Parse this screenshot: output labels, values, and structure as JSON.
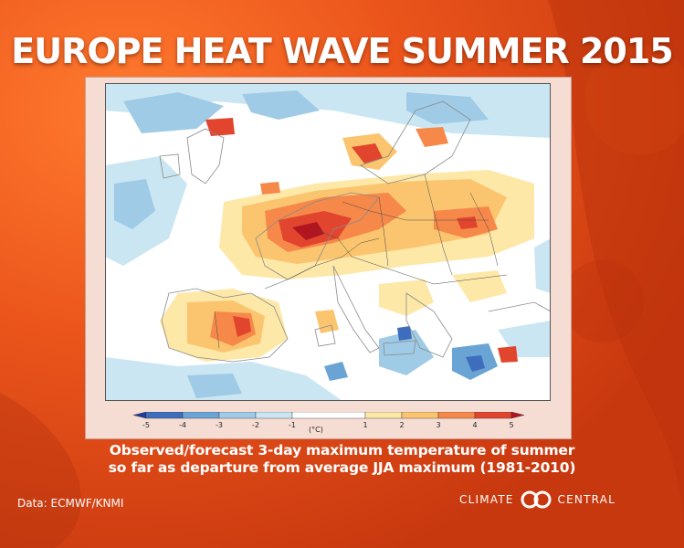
{
  "title": "EUROPE HEAT WAVE SUMMER 2015",
  "caption": {
    "line1": "Observed/forecast 3-day maximum temperature of summer",
    "line2": "so far as departure from average JJA maximum (1981-2010)"
  },
  "source": "Data: ECMWF/KNMI",
  "logo": {
    "left": "CLIMATE",
    "right": "CENTRAL"
  },
  "legend": {
    "unit": "(°C)",
    "ticks": [
      "-5",
      "-4",
      "-3",
      "-2",
      "-1",
      "1",
      "2",
      "3",
      "4",
      "5"
    ],
    "bins": [
      {
        "from": -6,
        "to": -5,
        "color": "#1f3c9c"
      },
      {
        "from": -5,
        "to": -4,
        "color": "#3f6dbd"
      },
      {
        "from": -4,
        "to": -3,
        "color": "#6aa4d4"
      },
      {
        "from": -3,
        "to": -2,
        "color": "#9fcbe6"
      },
      {
        "from": -2,
        "to": -1,
        "color": "#cbe6f3"
      },
      {
        "from": -1,
        "to": 1,
        "color": "#ffffff"
      },
      {
        "from": 1,
        "to": 2,
        "color": "#fde8a8"
      },
      {
        "from": 2,
        "to": 3,
        "color": "#fbc56f"
      },
      {
        "from": 3,
        "to": 4,
        "color": "#f6894a"
      },
      {
        "from": 4,
        "to": 5,
        "color": "#e2452d"
      },
      {
        "from": 5,
        "to": 6,
        "color": "#b11520"
      }
    ]
  },
  "colors": {
    "background": "#e8521a",
    "land_neutral": "#ffffff",
    "sea_neutral": "#ffffff",
    "coast": "#8a8a8a",
    "border": "#4a4a4a"
  }
}
